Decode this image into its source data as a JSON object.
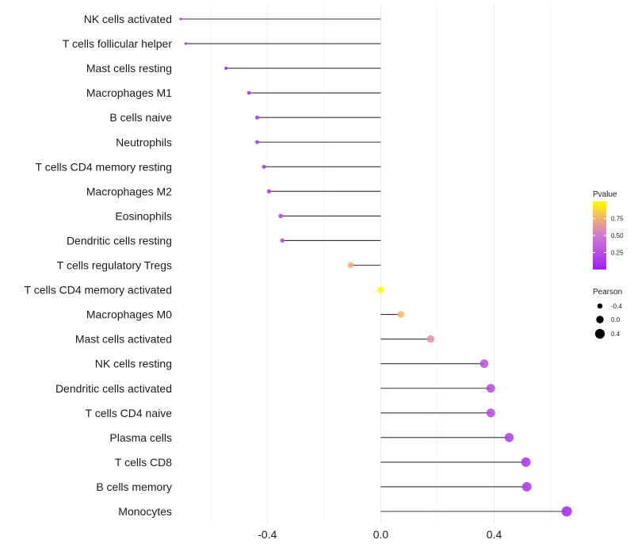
{
  "chart_data": {
    "type": "lollipop",
    "title": "",
    "xlabel": "",
    "ylabel": "",
    "xlim": [
      -0.7,
      0.72
    ],
    "x_ticks": [
      -0.4,
      0.0,
      0.4
    ],
    "x_tick_labels": [
      "-0.4",
      "0.0",
      "0.4"
    ],
    "grid": true,
    "points": [
      {
        "label": "NK cells activated",
        "pearson": -0.706,
        "pvalue": 0.0
      },
      {
        "label": "T cells follicular helper",
        "pearson": -0.688,
        "pvalue": 0.0
      },
      {
        "label": "Mast cells resting",
        "pearson": -0.546,
        "pvalue": 0.03
      },
      {
        "label": "Macrophages M1",
        "pearson": -0.465,
        "pvalue": 0.08
      },
      {
        "label": "B cells naive",
        "pearson": -0.436,
        "pvalue": 0.12
      },
      {
        "label": "Neutrophils",
        "pearson": -0.436,
        "pvalue": 0.12
      },
      {
        "label": "T cells CD4 memory resting",
        "pearson": -0.412,
        "pvalue": 0.14
      },
      {
        "label": "Macrophages M2",
        "pearson": -0.394,
        "pvalue": 0.16
      },
      {
        "label": "Eosinophils",
        "pearson": -0.353,
        "pvalue": 0.22
      },
      {
        "label": "Dendritic cells resting",
        "pearson": -0.347,
        "pvalue": 0.23
      },
      {
        "label": "T cells regulatory  Tregs",
        "pearson": -0.106,
        "pvalue": 0.72
      },
      {
        "label": "T cells CD4 memory activated",
        "pearson": 0.0,
        "pvalue": 1.0
      },
      {
        "label": "Macrophages M0",
        "pearson": 0.071,
        "pvalue": 0.8
      },
      {
        "label": "Mast cells activated",
        "pearson": 0.176,
        "pvalue": 0.6
      },
      {
        "label": "NK cells resting",
        "pearson": 0.365,
        "pvalue": 0.25
      },
      {
        "label": "Dendritic cells activated",
        "pearson": 0.388,
        "pvalue": 0.22
      },
      {
        "label": "T cells CD4 naive",
        "pearson": 0.388,
        "pvalue": 0.22
      },
      {
        "label": "Plasma cells",
        "pearson": 0.453,
        "pvalue": 0.15
      },
      {
        "label": "T cells CD8",
        "pearson": 0.512,
        "pvalue": 0.1
      },
      {
        "label": "B cells memory",
        "pearson": 0.515,
        "pvalue": 0.1
      },
      {
        "label": "Monocytes",
        "pearson": 0.656,
        "pvalue": 0.03
      }
    ],
    "legend": {
      "position": "right",
      "color": {
        "title": "Pvalue",
        "ticks": [
          0.25,
          0.5,
          0.75
        ],
        "tick_labels": [
          "0.25",
          "0.50",
          "0.75"
        ],
        "range": [
          0.0,
          1.0
        ],
        "low_color": "#a020f0",
        "high_color": "#ffff00"
      },
      "size": {
        "title": "Pearson",
        "values": [
          -0.4,
          0.0,
          0.4
        ],
        "labels": [
          "-0.4",
          "0.0",
          "0.4"
        ]
      }
    }
  }
}
